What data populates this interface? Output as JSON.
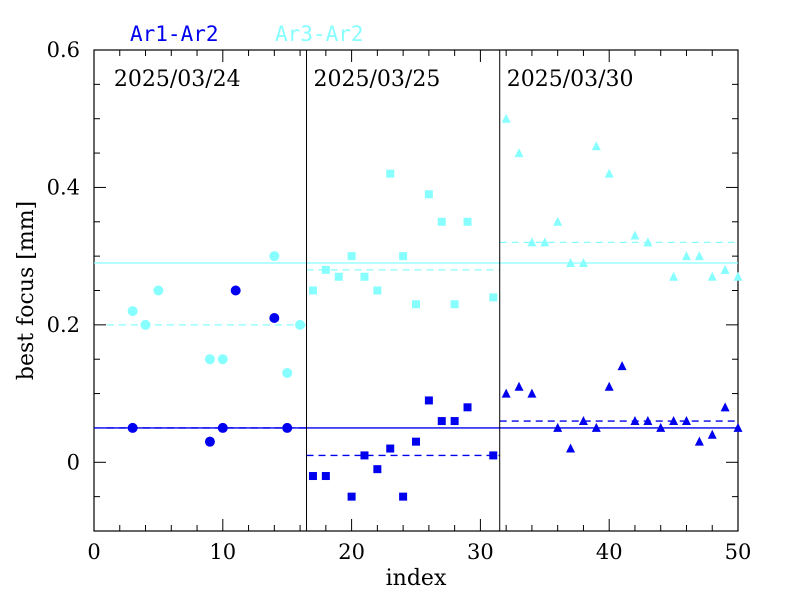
{
  "chart_data": {
    "type": "scatter",
    "title": "",
    "xlabel": "index",
    "ylabel": "best focus [mm]",
    "xlim": [
      0,
      50
    ],
    "ylim": [
      -0.1,
      0.6
    ],
    "x_ticks": [
      0,
      10,
      20,
      30,
      40,
      50
    ],
    "x_tick_labels": [
      "0",
      "10",
      "20",
      "30",
      "40",
      "50"
    ],
    "y_ticks": [
      0,
      0.2,
      0.4,
      0.6
    ],
    "y_tick_labels": [
      "0",
      "0.2",
      "0.4",
      "0.6"
    ],
    "grid": false,
    "legend_position": "top-left, above the plot",
    "colors": {
      "Ar1-Ar2": "#0000ee",
      "Ar3-Ar2": "#88ffff"
    },
    "session_dividers": [
      16.5,
      31.5
    ],
    "sessions": [
      {
        "label": "2025/03/24",
        "x_range": [
          1,
          16.5
        ],
        "marker": "circle",
        "means": {
          "Ar1-Ar2": 0.05,
          "Ar3-Ar2": 0.2
        }
      },
      {
        "label": "2025/03/25",
        "x_range": [
          16.5,
          31.5
        ],
        "marker": "square",
        "means": {
          "Ar1-Ar2": 0.01,
          "Ar3-Ar2": 0.28
        }
      },
      {
        "label": "2025/03/30",
        "x_range": [
          31.5,
          50
        ],
        "marker": "triangle",
        "means": {
          "Ar1-Ar2": 0.06,
          "Ar3-Ar2": 0.32
        }
      }
    ],
    "overall_means": {
      "Ar1-Ar2": 0.05,
      "Ar3-Ar2": 0.29
    },
    "series": [
      {
        "name": "Ar1-Ar2",
        "points": [
          [
            3,
            0.05
          ],
          [
            9,
            0.03
          ],
          [
            10,
            0.05
          ],
          [
            11,
            0.25
          ],
          [
            14,
            0.21
          ],
          [
            15,
            0.05
          ],
          [
            17,
            -0.02
          ],
          [
            18,
            -0.02
          ],
          [
            20,
            -0.05
          ],
          [
            21,
            0.01
          ],
          [
            22,
            -0.01
          ],
          [
            23,
            0.02
          ],
          [
            24,
            -0.05
          ],
          [
            25,
            0.03
          ],
          [
            26,
            0.09
          ],
          [
            27,
            0.06
          ],
          [
            28,
            0.06
          ],
          [
            29,
            0.08
          ],
          [
            31,
            0.01
          ],
          [
            32,
            0.1
          ],
          [
            33,
            0.11
          ],
          [
            34,
            0.1
          ],
          [
            36,
            0.05
          ],
          [
            37,
            0.02
          ],
          [
            38,
            0.06
          ],
          [
            39,
            0.05
          ],
          [
            40,
            0.11
          ],
          [
            41,
            0.14
          ],
          [
            42,
            0.06
          ],
          [
            43,
            0.06
          ],
          [
            44,
            0.05
          ],
          [
            45,
            0.06
          ],
          [
            46,
            0.06
          ],
          [
            47,
            0.03
          ],
          [
            48,
            0.04
          ],
          [
            49,
            0.08
          ],
          [
            50,
            0.05
          ]
        ]
      },
      {
        "name": "Ar3-Ar2",
        "points": [
          [
            3,
            0.22
          ],
          [
            4,
            0.2
          ],
          [
            5,
            0.25
          ],
          [
            9,
            0.15
          ],
          [
            10,
            0.15
          ],
          [
            14,
            0.3
          ],
          [
            15,
            0.13
          ],
          [
            16,
            0.2
          ],
          [
            17,
            0.25
          ],
          [
            18,
            0.28
          ],
          [
            19,
            0.27
          ],
          [
            20,
            0.3
          ],
          [
            21,
            0.27
          ],
          [
            22,
            0.25
          ],
          [
            23,
            0.42
          ],
          [
            24,
            0.3
          ],
          [
            25,
            0.23
          ],
          [
            26,
            0.39
          ],
          [
            27,
            0.35
          ],
          [
            28,
            0.23
          ],
          [
            29,
            0.35
          ],
          [
            31,
            0.24
          ],
          [
            32,
            0.5
          ],
          [
            33,
            0.45
          ],
          [
            34,
            0.32
          ],
          [
            35,
            0.32
          ],
          [
            36,
            0.35
          ],
          [
            37,
            0.29
          ],
          [
            38,
            0.29
          ],
          [
            39,
            0.46
          ],
          [
            40,
            0.42
          ],
          [
            42,
            0.33
          ],
          [
            43,
            0.32
          ],
          [
            45,
            0.27
          ],
          [
            46,
            0.3
          ],
          [
            47,
            0.3
          ],
          [
            48,
            0.27
          ],
          [
            49,
            0.28
          ],
          [
            50,
            0.27
          ]
        ]
      }
    ]
  }
}
